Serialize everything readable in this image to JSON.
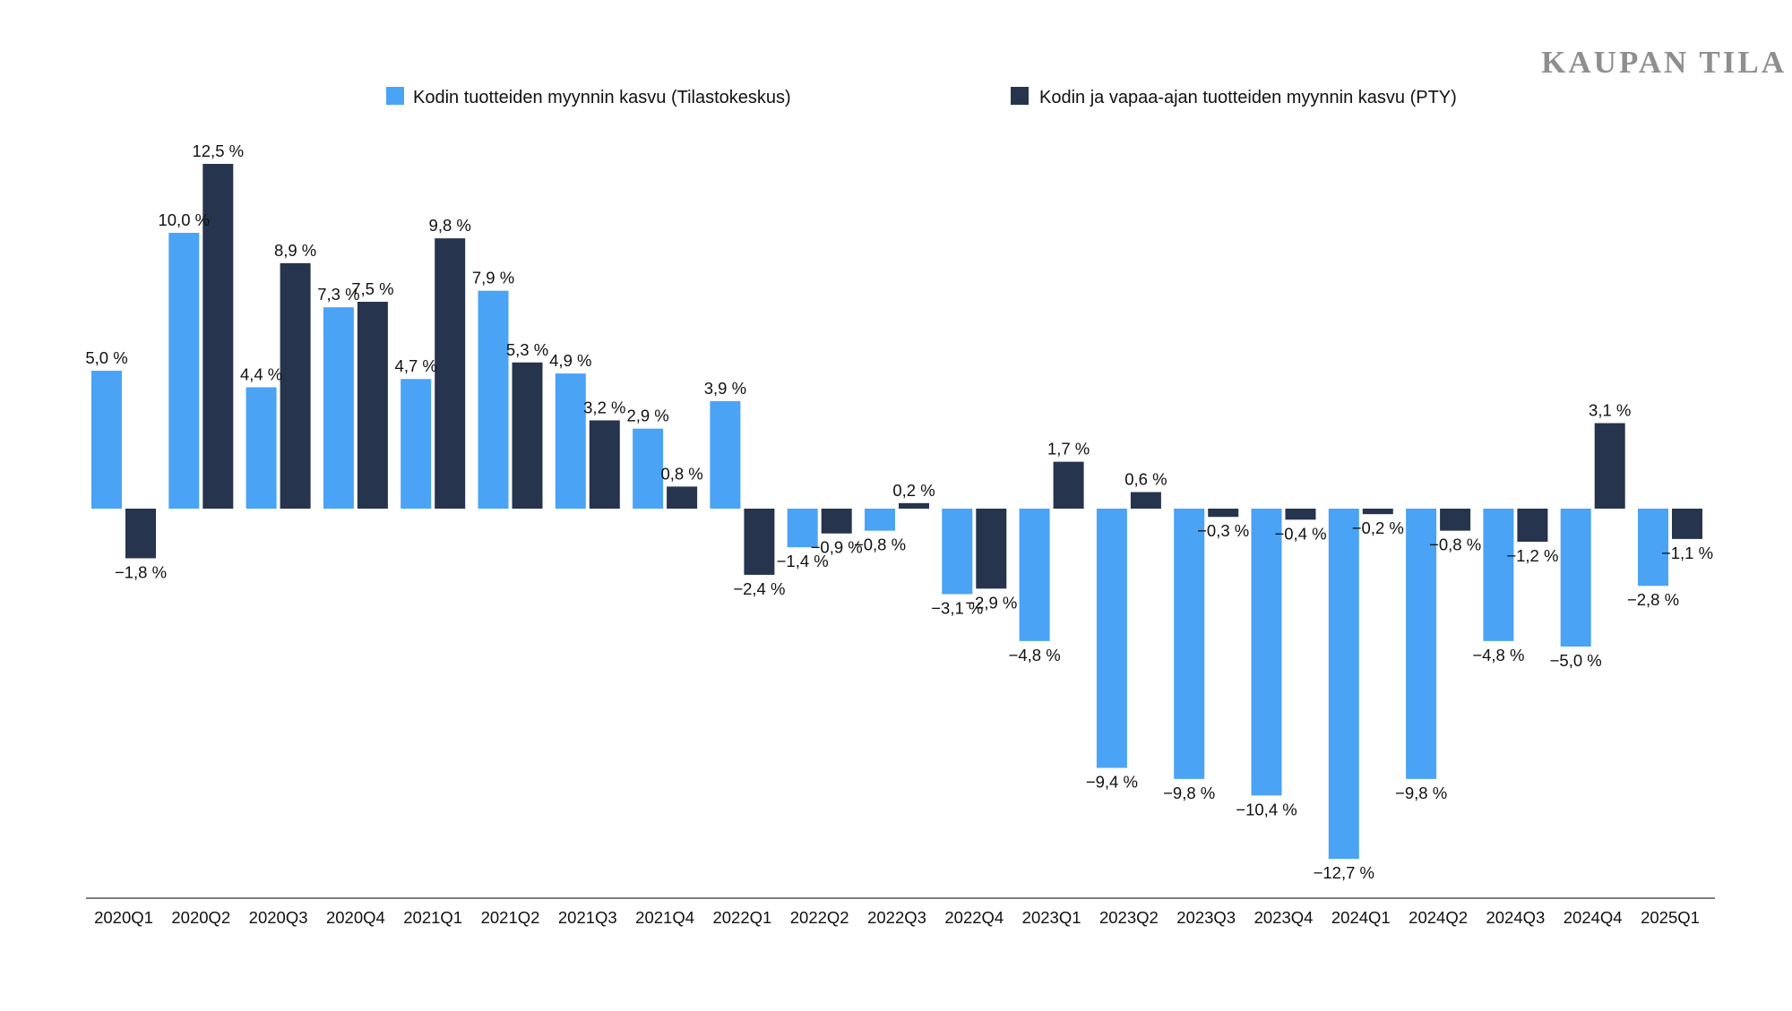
{
  "brand": "KAUPAN TILA",
  "chart_data": {
    "type": "bar",
    "title": "",
    "xlabel": "",
    "ylabel": "",
    "legend_position": "top",
    "ylim": [
      -13.5,
      13.5
    ],
    "categories": [
      "2020Q1",
      "2020Q2",
      "2020Q3",
      "2020Q4",
      "2021Q1",
      "2021Q2",
      "2021Q3",
      "2021Q4",
      "2022Q1",
      "2022Q2",
      "2022Q3",
      "2022Q4",
      "2023Q1",
      "2023Q2",
      "2023Q3",
      "2023Q4",
      "2024Q1",
      "2024Q2",
      "2024Q3",
      "2024Q4",
      "2025Q1"
    ],
    "series": [
      {
        "name": "Kodin tuotteiden myynnin kasvu (Tilastokeskus)",
        "color": "#4aa3f5",
        "values": [
          5.0,
          10.0,
          4.4,
          7.3,
          4.7,
          7.9,
          4.9,
          2.9,
          3.9,
          -1.4,
          -0.8,
          -3.1,
          -4.8,
          -9.4,
          -9.8,
          -10.4,
          -12.7,
          -9.8,
          -4.8,
          -5.0,
          -2.8
        ],
        "labels": [
          "5,0 %",
          "10,0 %",
          "4,4 %",
          "7,3 %",
          "4,7 %",
          "7,9 %",
          "4,9 %",
          "2,9 %",
          "3,9 %",
          "−1,4 %",
          "−0,8 %",
          "−3,1 %",
          "−4,8 %",
          "−9,4 %",
          "−9,8 %",
          "−10,4 %",
          "−12,7 %",
          "−9,8 %",
          "−4,8 %",
          "−5,0 %",
          "−2,8 %"
        ]
      },
      {
        "name": "Kodin ja vapaa-ajan tuotteiden myynnin kasvu (PTY)",
        "color": "#26344d",
        "values": [
          -1.8,
          12.5,
          8.9,
          7.5,
          9.8,
          5.3,
          3.2,
          0.8,
          -2.4,
          -0.9,
          0.2,
          -2.9,
          1.7,
          0.6,
          -0.3,
          -0.4,
          -0.2,
          -0.8,
          -1.2,
          3.1,
          -1.1
        ],
        "labels": [
          "−1,8 %",
          "12,5 %",
          "8,9 %",
          "7,5 %",
          "9,8 %",
          "5,3 %",
          "3,2 %",
          "0,8 %",
          "−2,4 %",
          "−0,9 %",
          "0,2 %",
          "−2,9 %",
          "1,7 %",
          "0,6 %",
          "−0,3 %",
          "−0,4 %",
          "−0,2 %",
          "−0,8 %",
          "−1,2 %",
          "3,1 %",
          "−1,1 %"
        ]
      }
    ]
  }
}
